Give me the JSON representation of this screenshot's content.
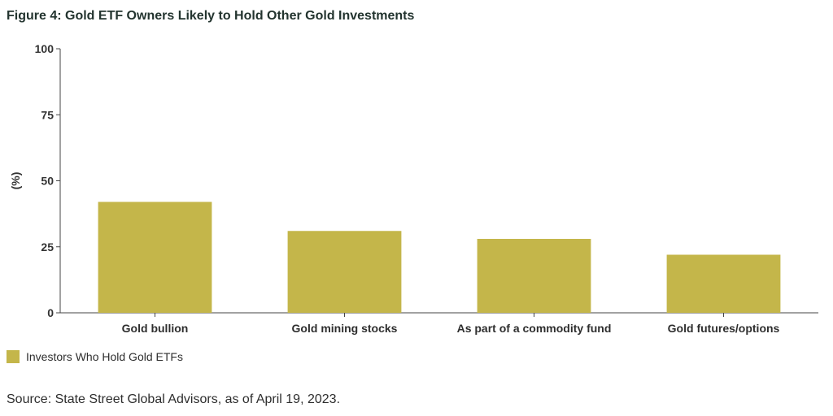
{
  "colors": {
    "bar": "#c4b64a",
    "axis": "#444444"
  },
  "chart_data": {
    "type": "bar",
    "title": "Figure 4: Gold ETF Owners Likely to Hold Other Gold Investments",
    "xlabel": "",
    "ylabel": "(%)",
    "categories": [
      "Gold bullion",
      "Gold mining stocks",
      "As part of a commodity fund",
      "Gold futures/options"
    ],
    "series": [
      {
        "name": "Investors Who Hold Gold ETFs",
        "values": [
          42,
          31,
          28,
          22
        ]
      }
    ],
    "ylim": [
      0,
      100
    ],
    "yticks": [
      0,
      25,
      50,
      75,
      100
    ],
    "grid": false,
    "legend": "bottom-left"
  },
  "source": "Source: State Street Global Advisors, as of April 19, 2023."
}
